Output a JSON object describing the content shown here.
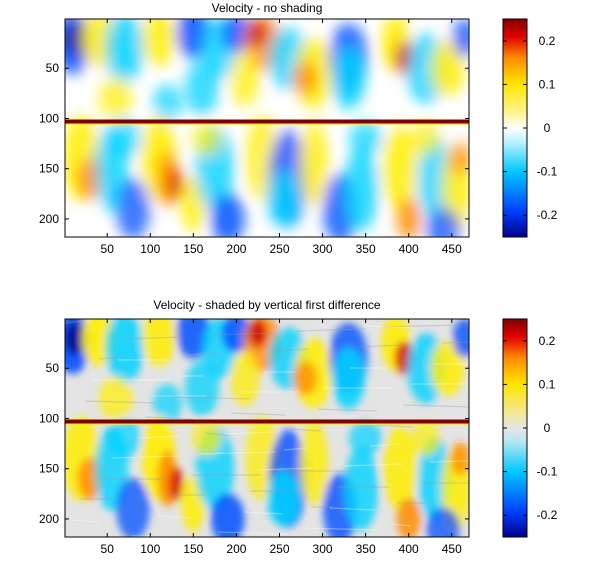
{
  "chart_data": [
    {
      "type": "heatmap",
      "title": "Velocity - no shading",
      "xlabel": "",
      "ylabel": "",
      "x_ticks": [
        "50",
        "100",
        "150",
        "200",
        "250",
        "300",
        "350",
        "400",
        "450"
      ],
      "y_ticks": [
        "50",
        "100",
        "150",
        "200"
      ],
      "xlim": [
        1,
        470
      ],
      "ylim": [
        218,
        1
      ],
      "grid": false,
      "colorbar": {
        "colormap": "jet-like (blue-cyan-white-yellow-red)",
        "range": [
          -0.25,
          0.25
        ],
        "ticks": [
          "0.2",
          "0.1",
          "0",
          "-0.1",
          "-0.2"
        ]
      },
      "features": [
        {
          "label": "horizontal reflector",
          "y": 103,
          "x_range": [
            1,
            470
          ]
        }
      ]
    },
    {
      "type": "heatmap",
      "title": "Velocity - shaded by vertical first difference",
      "xlabel": "",
      "ylabel": "",
      "x_ticks": [
        "50",
        "100",
        "150",
        "200",
        "250",
        "300",
        "350",
        "400",
        "450"
      ],
      "y_ticks": [
        "50",
        "100",
        "150",
        "200"
      ],
      "xlim": [
        1,
        470
      ],
      "ylim": [
        218,
        1
      ],
      "grid": false,
      "colorbar": {
        "colormap": "jet-like (blue-cyan-gray-yellow-red)",
        "range": [
          -0.25,
          0.25
        ],
        "ticks": [
          "0.2",
          "0.1",
          "0",
          "-0.1",
          "-0.2"
        ]
      },
      "features": [
        {
          "label": "horizontal reflector",
          "y": 103,
          "x_range": [
            1,
            470
          ]
        }
      ]
    }
  ],
  "colors": {
    "deep_blue": "#00008c",
    "blue": "#0050ff",
    "cyan": "#00d2ff",
    "white": "#ffffff",
    "yellow": "#ffee00",
    "orange": "#ff8c00",
    "red": "#d20000",
    "dark_red": "#800000",
    "shade_gray": "#cfcfcf"
  }
}
